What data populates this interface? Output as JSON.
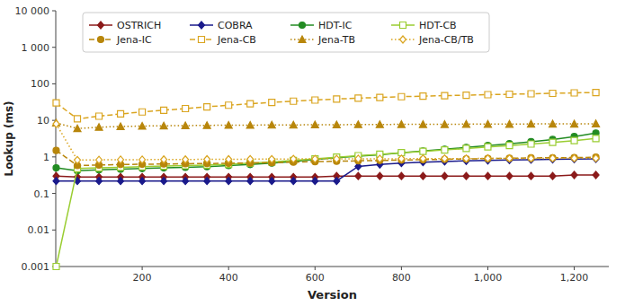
{
  "chart_data": {
    "type": "line",
    "xlabel": "Version",
    "ylabel": "Lookup (ms)",
    "x": [
      1,
      50,
      100,
      150,
      200,
      250,
      300,
      350,
      400,
      450,
      500,
      550,
      600,
      650,
      700,
      750,
      800,
      850,
      900,
      950,
      1000,
      1050,
      1100,
      1150,
      1200,
      1250
    ],
    "series": [
      {
        "name": "OSTRICH",
        "color": "#8B1A1A",
        "marker": "diamond",
        "line_style": "solid",
        "values": [
          0.3,
          0.28,
          0.28,
          0.28,
          0.28,
          0.28,
          0.28,
          0.28,
          0.28,
          0.28,
          0.28,
          0.28,
          0.28,
          0.3,
          0.3,
          0.3,
          0.3,
          0.3,
          0.3,
          0.3,
          0.3,
          0.3,
          0.3,
          0.3,
          0.32,
          0.32
        ]
      },
      {
        "name": "COBRA",
        "color": "#1A1A8B",
        "marker": "diamond",
        "line_style": "solid",
        "values": [
          0.22,
          0.22,
          0.22,
          0.22,
          0.22,
          0.22,
          0.22,
          0.22,
          0.22,
          0.22,
          0.22,
          0.22,
          0.22,
          0.22,
          0.55,
          0.62,
          0.68,
          0.72,
          0.75,
          0.78,
          0.8,
          0.82,
          0.84,
          0.86,
          0.87,
          0.88
        ]
      },
      {
        "name": "HDT-IC",
        "color": "#228B22",
        "marker": "circle",
        "line_style": "solid",
        "values": [
          0.5,
          0.42,
          0.44,
          0.46,
          0.48,
          0.5,
          0.52,
          0.54,
          0.58,
          0.62,
          0.68,
          0.75,
          0.85,
          0.95,
          1.05,
          1.15,
          1.3,
          1.45,
          1.62,
          1.82,
          2.05,
          2.3,
          2.6,
          3.0,
          3.6,
          4.5
        ]
      },
      {
        "name": "HDT-CB",
        "color": "#9ACD32",
        "marker": "open-square",
        "line_style": "solid",
        "values": [
          0.001,
          0.48,
          0.5,
          0.52,
          0.54,
          0.56,
          0.58,
          0.6,
          0.63,
          0.68,
          0.73,
          0.8,
          0.88,
          0.98,
          1.08,
          1.18,
          1.3,
          1.42,
          1.55,
          1.7,
          1.88,
          2.05,
          2.25,
          2.5,
          2.8,
          3.2
        ]
      },
      {
        "name": "Jena-IC",
        "color": "#B8860B",
        "marker": "circle",
        "line_style": "dashed",
        "values": [
          1.5,
          0.58,
          0.6,
          0.62,
          0.63,
          0.64,
          0.65,
          0.66,
          0.67,
          0.68,
          0.7,
          0.72,
          0.74,
          0.76,
          0.78,
          0.8,
          0.82,
          0.84,
          0.86,
          0.88,
          0.9,
          0.92,
          0.94,
          0.95,
          0.96,
          0.98
        ]
      },
      {
        "name": "Jena-CB",
        "color": "#DAA520",
        "marker": "open-square",
        "line_style": "dashed",
        "values": [
          30.0,
          11.0,
          13.0,
          15.0,
          17.0,
          19.0,
          21.0,
          23.5,
          26.0,
          28.5,
          31.0,
          33.5,
          36.0,
          38.5,
          40.5,
          42.5,
          44.5,
          46.0,
          47.5,
          49.0,
          50.5,
          52.0,
          53.5,
          55.0,
          56.5,
          58.0
        ]
      },
      {
        "name": "Jena-TB",
        "color": "#B8860B",
        "marker": "triangle",
        "line_style": "dotted",
        "values": [
          8.5,
          6.0,
          6.5,
          6.8,
          7.0,
          7.1,
          7.2,
          7.3,
          7.4,
          7.4,
          7.5,
          7.5,
          7.6,
          7.6,
          7.7,
          7.7,
          7.8,
          7.8,
          7.8,
          7.9,
          7.9,
          7.9,
          8.0,
          8.0,
          8.0,
          8.1
        ]
      },
      {
        "name": "Jena-CB/TB",
        "color": "#DAA520",
        "marker": "open-diamond",
        "line_style": "dotted",
        "values": [
          8.0,
          0.82,
          0.83,
          0.84,
          0.84,
          0.85,
          0.85,
          0.86,
          0.86,
          0.87,
          0.87,
          0.88,
          0.88,
          0.88,
          0.89,
          0.89,
          0.89,
          0.9,
          0.9,
          0.9,
          0.91,
          0.91,
          0.91,
          0.92,
          0.92,
          0.92
        ]
      }
    ],
    "xlim": [
      0,
      1280
    ],
    "ylim": [
      0.001,
      10000
    ],
    "log": "y",
    "xticks": [
      200,
      400,
      600,
      800,
      {
        "value": 1000,
        "label": "1,000"
      },
      {
        "value": 1200,
        "label": "1,200"
      }
    ],
    "yticks": [
      0.001,
      0.01,
      0.1,
      1,
      10,
      100,
      {
        "value": 1000,
        "label": "1 000"
      },
      {
        "value": 10000,
        "label": "10 000"
      }
    ],
    "grid": false,
    "legend": "upper left"
  }
}
